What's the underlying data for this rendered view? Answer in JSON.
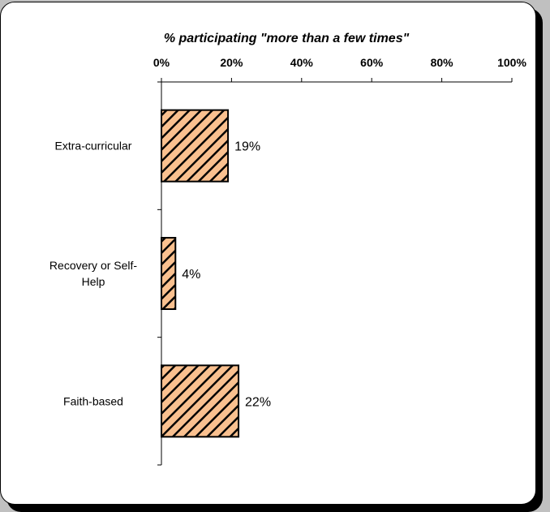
{
  "chart_data": {
    "type": "bar",
    "orientation": "horizontal",
    "title": "",
    "xlabel": "% participating \"more than a few times\"",
    "ylabel": "",
    "categories": [
      [
        "Extra-curricular"
      ],
      [
        "Recovery or Self-",
        "Help"
      ],
      [
        "Faith-based"
      ]
    ],
    "values": [
      19,
      4,
      22
    ],
    "data_labels": [
      "19%",
      "4%",
      "22%"
    ],
    "xlim": [
      0,
      100
    ],
    "x_ticks": [
      0,
      20,
      40,
      60,
      80,
      100
    ],
    "x_tick_labels": [
      "0%",
      "20%",
      "40%",
      "60%",
      "80%",
      "100%"
    ],
    "x_axis_position": "top",
    "grid": false,
    "legend": "none",
    "bar_fill": "#f9c08f",
    "bar_stripe": "#000000",
    "bar_pattern": "diagonal-stripes"
  }
}
